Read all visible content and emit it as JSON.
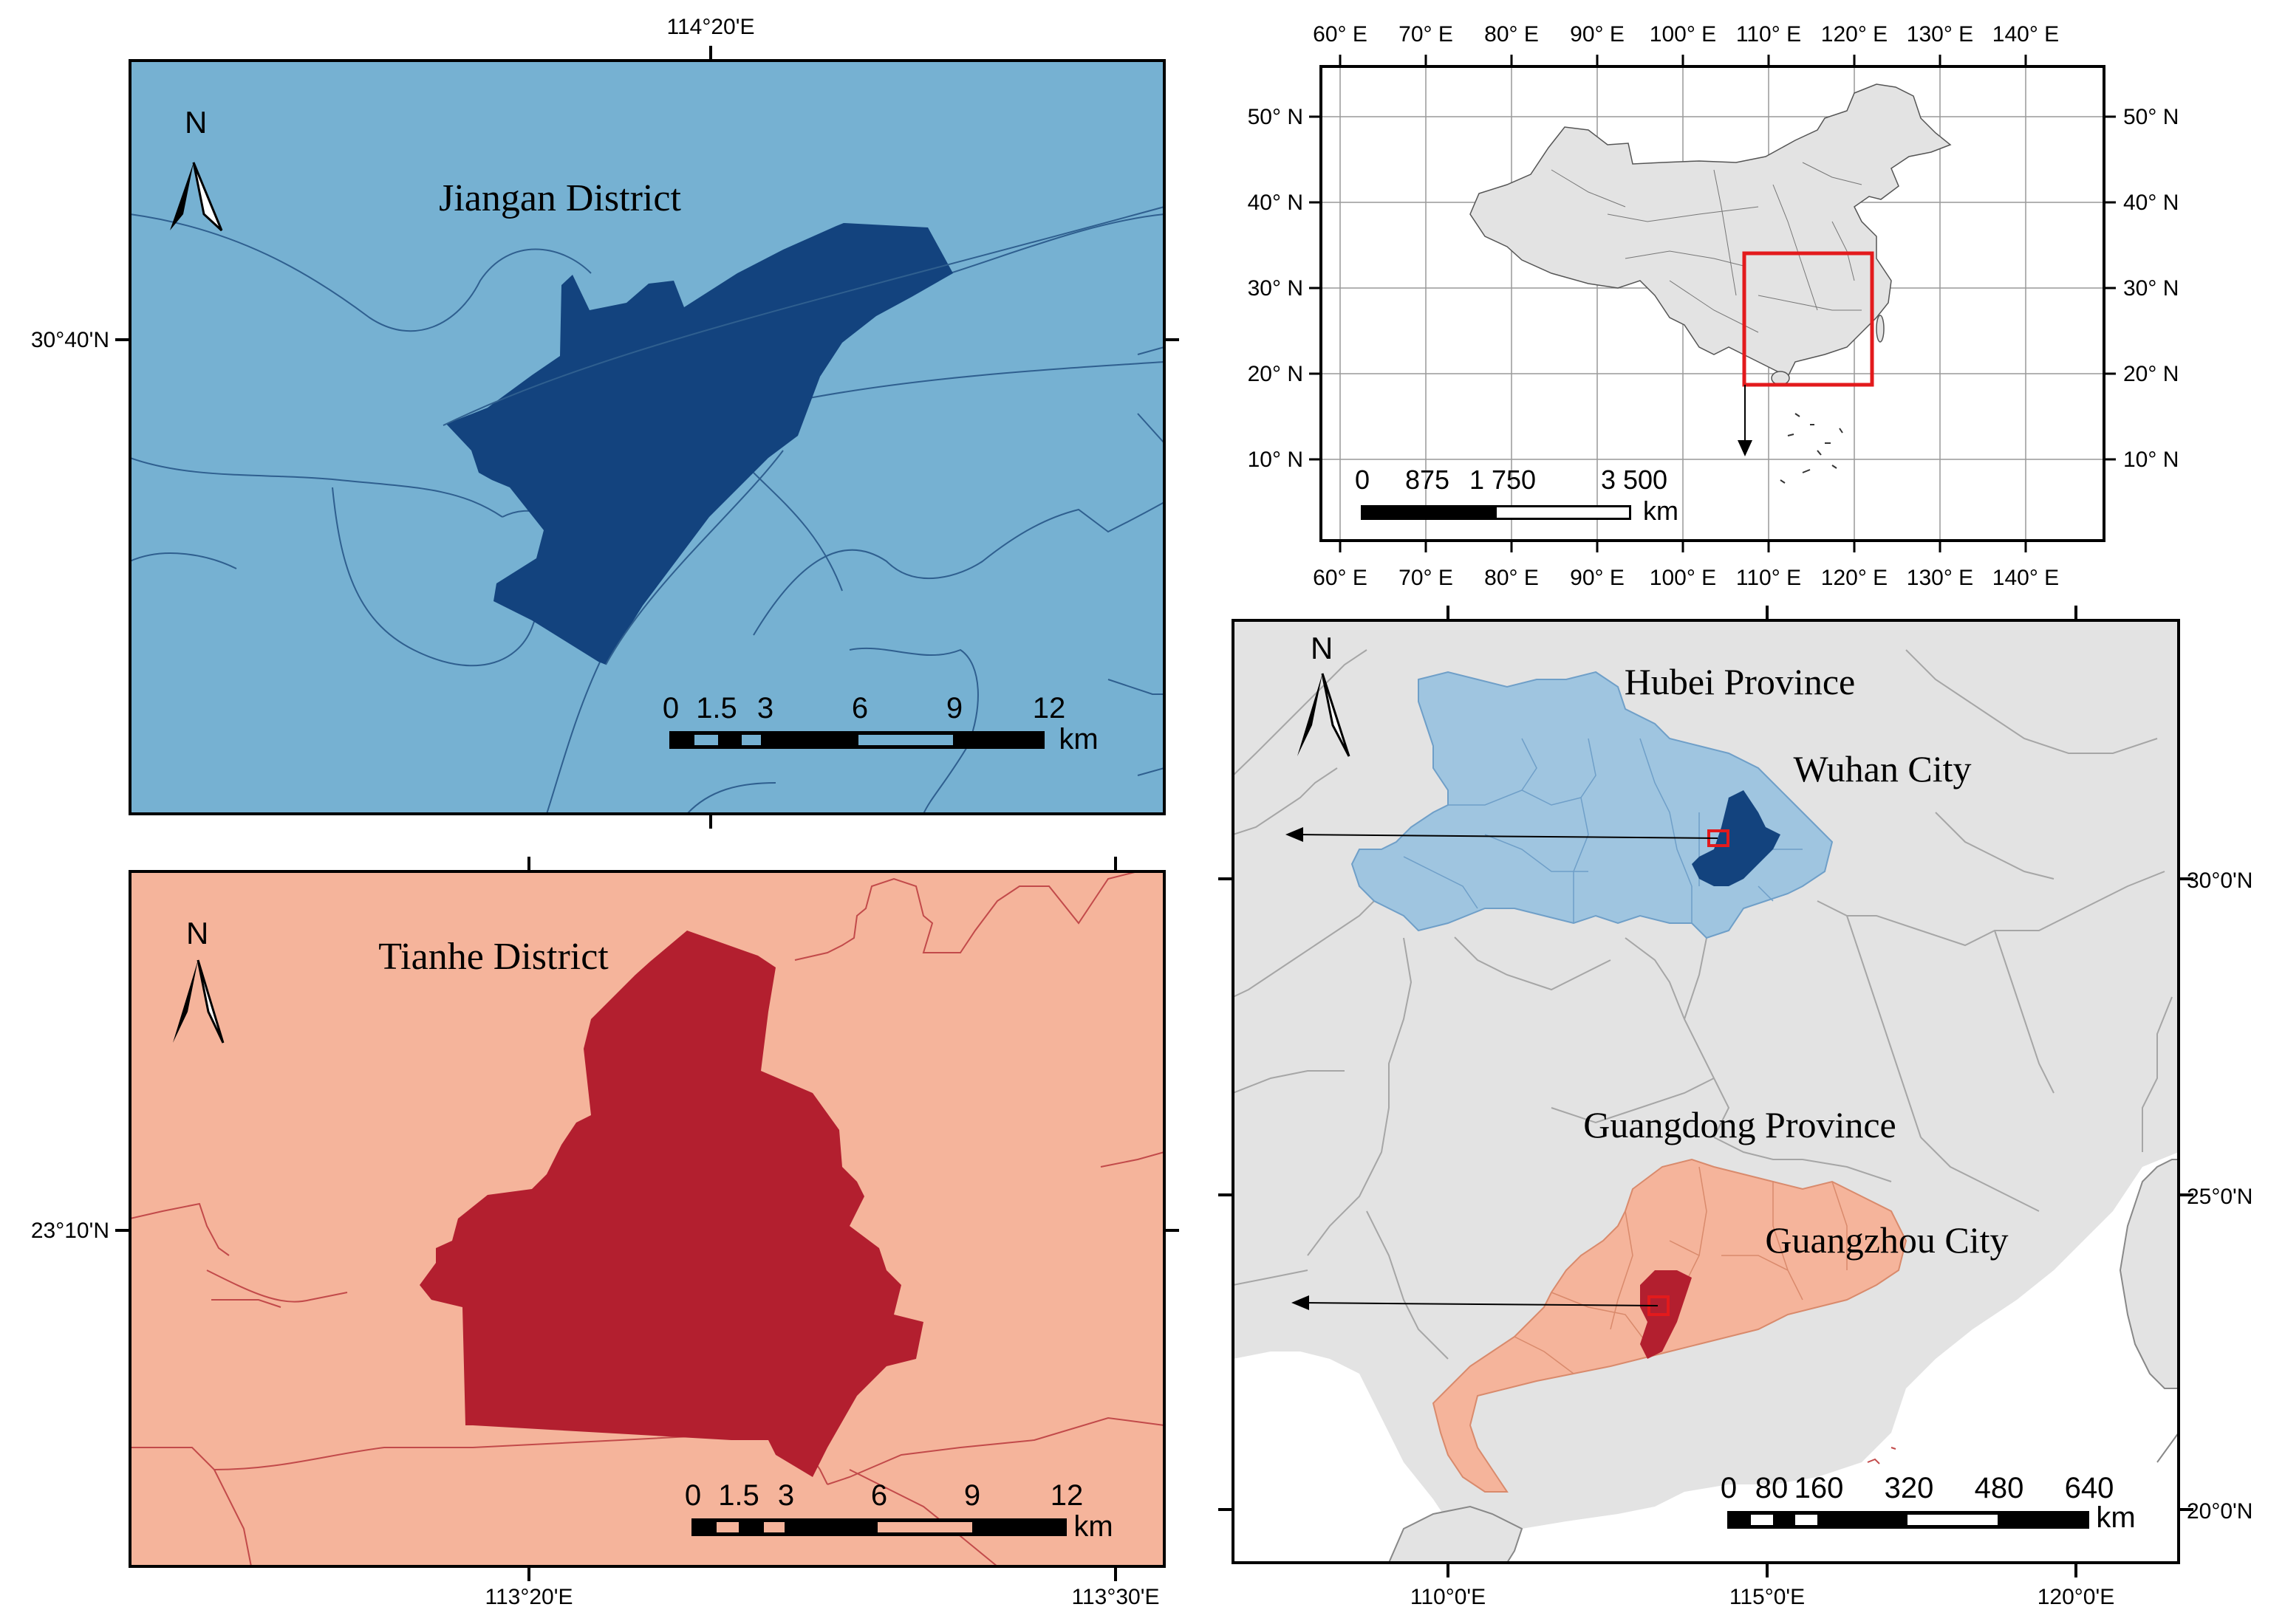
{
  "colors": {
    "jiangan_bg": "#76b1d2",
    "jiangan_fill": "#13437e",
    "tianhe_bg": "#f5b49b",
    "tianhe_fill": "#b31f2f",
    "hubei_fill": "#9fc5e0",
    "guangdong_fill": "#f5b49b",
    "china_fill": "#e3e3e3",
    "highlight_box": "#e31a1c"
  },
  "panel_jiangan": {
    "title": "Jiangan District",
    "north": "N",
    "top_lon_label": "114°20'E",
    "left_lat_label": "30°40'N",
    "scale_labels": [
      "0",
      "1.5",
      "3",
      "6",
      "9",
      "12"
    ],
    "scale_unit": "km"
  },
  "panel_tianhe": {
    "title": "Tianhe District",
    "north": "N",
    "left_lat_label": "23°10'N",
    "bottom_lon_labels": [
      "113°20'E",
      "113°30'E"
    ],
    "scale_labels": [
      "0",
      "1.5",
      "3",
      "6",
      "9",
      "12"
    ],
    "scale_unit": "km"
  },
  "panel_china": {
    "lon_labels": [
      "60° E",
      "70° E",
      "80° E",
      "90° E",
      "100° E",
      "110° E",
      "120° E",
      "130° E",
      "140° E"
    ],
    "lat_labels": [
      "50° N",
      "40° N",
      "30° N",
      "20° N",
      "10° N"
    ],
    "scale_labels": [
      "0",
      "875",
      "1 750",
      "3 500"
    ],
    "scale_unit": "km"
  },
  "panel_region": {
    "north": "N",
    "hubei_label": "Hubei Province",
    "wuhan_label": "Wuhan City",
    "guangdong_label": "Guangdong Province",
    "guangzhou_label": "Guangzhou City",
    "right_lat_labels": [
      "30°0'N",
      "25°0'N",
      "20°0'N"
    ],
    "bottom_lon_labels": [
      "110°0'E",
      "115°0'E",
      "120°0'E"
    ],
    "scale_labels": [
      "0",
      "80",
      "160",
      "320",
      "480",
      "640"
    ],
    "scale_unit": "km"
  }
}
